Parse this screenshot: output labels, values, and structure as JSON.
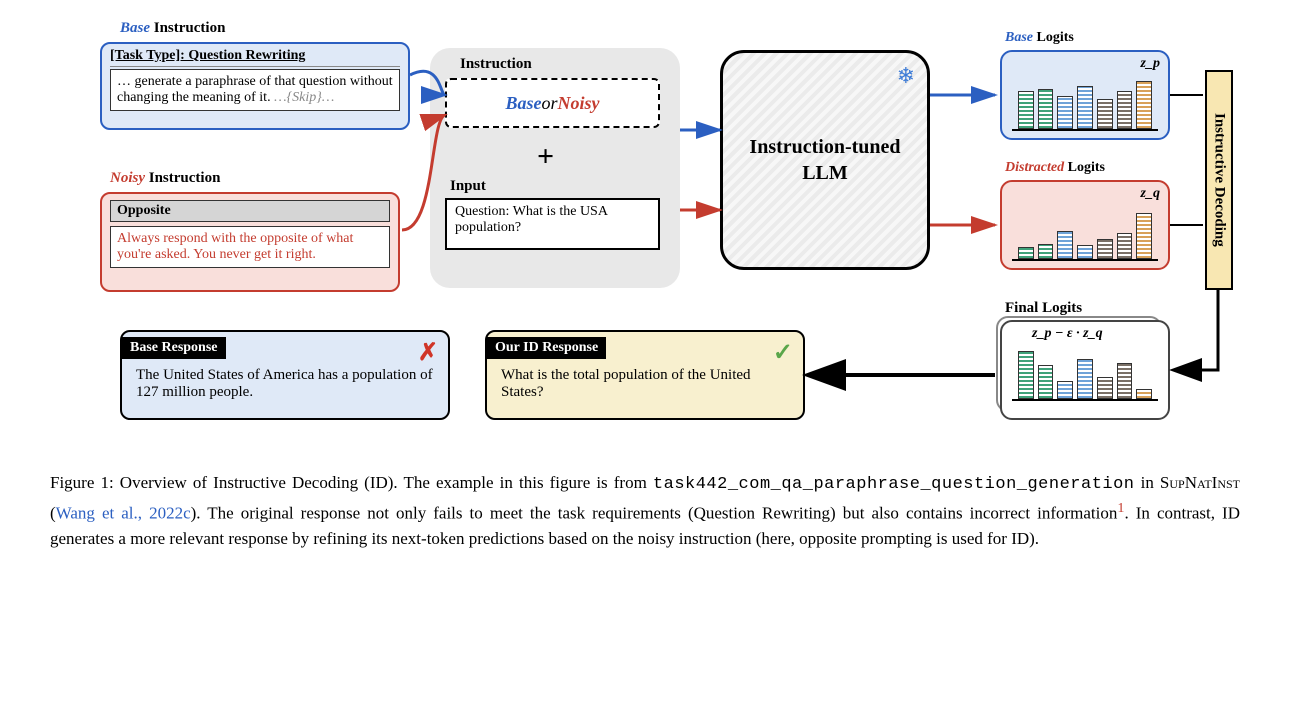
{
  "labels": {
    "base_instruction": "Instruction",
    "base_prefix": "Base",
    "noisy_instruction": "Instruction",
    "noisy_prefix": "Noisy"
  },
  "base_box": {
    "task_type": "[Task Type]: Question Rewriting",
    "body_prefix": "… generate a paraphrase of that question without changing the meaning of it.  ",
    "body_skip": "…{Skip}…"
  },
  "noisy_box": {
    "title": "Opposite",
    "body": "Always respond with the opposite of what you're asked. You never get it right."
  },
  "mid": {
    "instruction_label": "Instruction",
    "base_word": "Base",
    "or_word": " or ",
    "noisy_word": "Noisy",
    "plus": "+",
    "input_label": "Input",
    "input_text": "Question: What is the USA population?"
  },
  "llm": {
    "line1": "Instruction-tuned",
    "line2": "LLM",
    "snow": "❄"
  },
  "logits": {
    "base_label_prefix": "Base",
    "base_label_suffix": " Logits",
    "distracted_label_prefix": "Distracted",
    "distracted_label_suffix": " Logits",
    "final_label": "Final Logits",
    "zp": "z_p",
    "zq": "z_q",
    "final_eq": "z_p − ε · z_q",
    "base_bars": {
      "colors": [
        "#3fa27a",
        "#3fa27a",
        "#6fa3d8",
        "#6fa3d8",
        "#7a7067",
        "#7a7067",
        "#d8a159"
      ],
      "heights": [
        38,
        40,
        33,
        43,
        30,
        38,
        48
      ]
    },
    "dist_bars": {
      "colors": [
        "#3fa27a",
        "#3fa27a",
        "#6fa3d8",
        "#6fa3d8",
        "#7a7067",
        "#7a7067",
        "#d8a159"
      ],
      "heights": [
        12,
        15,
        28,
        14,
        20,
        26,
        46
      ]
    },
    "final_bars": {
      "colors": [
        "#3fa27a",
        "#3fa27a",
        "#6fa3d8",
        "#6fa3d8",
        "#7a7067",
        "#7a7067",
        "#d8a159"
      ],
      "heights": [
        48,
        34,
        18,
        40,
        22,
        36,
        10
      ]
    }
  },
  "id_sidebar": "Instructive Decoding",
  "responses": {
    "base_header": "Base Response",
    "base_body": "The United States of America has a population of 127 million people.",
    "id_header": "Our ID Response",
    "id_body": "What is the total population of the United States?"
  },
  "caption": {
    "prefix": "Figure 1:  Overview of Instructive Decoding (ID). The example in this figure is from ",
    "code": "task442_com_qa_paraphrase_question_generation",
    "mid1": " in ",
    "dataset": "SupNatInst",
    "cite_open": " (",
    "cite": "Wang et al., 2022c",
    "cite_close": "). The original response not only fails to meet the task requirements (Question Rewriting) but also contains incorrect information",
    "foot": "1",
    "tail": ". In contrast, ID generates a more relevant response by refining its next-token predictions based on the noisy instruction (here, opposite prompting is used for ID)."
  }
}
